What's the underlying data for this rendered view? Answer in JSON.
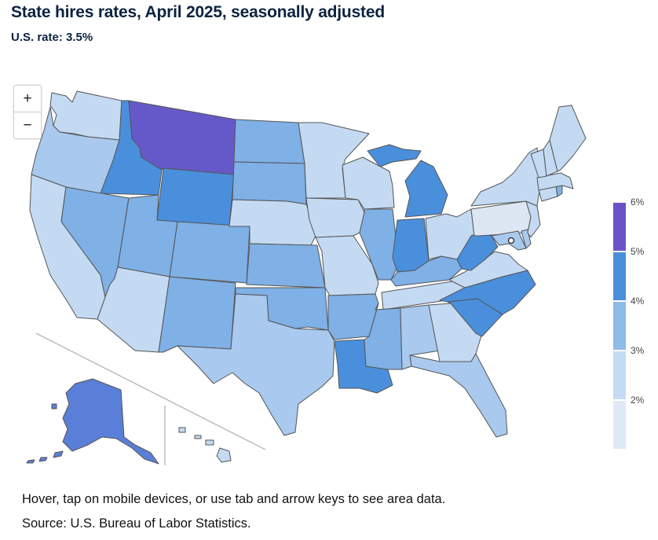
{
  "header": {
    "title": "State hires rates, April 2025, seasonally adjusted",
    "subtitle": "U.S. rate: 3.5%"
  },
  "zoom": {
    "in_label": "+",
    "out_label": "−"
  },
  "legend": {
    "labels": [
      "6%",
      "5%",
      "4%",
      "3%",
      "2%"
    ],
    "colors": [
      "#6b52c8",
      "#4a8fdc",
      "#8fbbe8",
      "#c4dbf3",
      "#dfe9f6"
    ]
  },
  "palette": {
    "purple": "#6559c9",
    "blue_dark": "#4a8fdc",
    "blue_mid": "#7fb0e6",
    "blue_light": "#a9c9ee",
    "blue_pale": "#c3daf2",
    "pale": "#dde7f3",
    "alaska": "#5a7fd8",
    "border": "#555555"
  },
  "footer": {
    "note": "Hover, tap on mobile devices, or use tab and arrow keys to see area data.",
    "source": "Source: U.S. Bureau of Labor Statistics."
  }
}
